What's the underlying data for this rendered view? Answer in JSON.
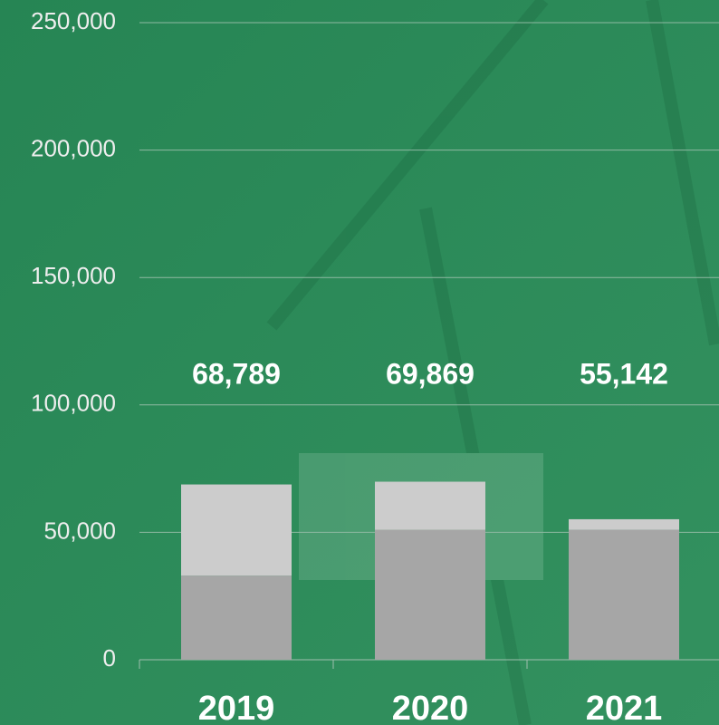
{
  "chart_data": {
    "type": "bar",
    "stacked": true,
    "categories": [
      "2019",
      "2020",
      "2021"
    ],
    "series": [
      {
        "color": "#a6a6a6",
        "values": [
          33000,
          51000,
          51000
        ]
      },
      {
        "color": "#cccccc",
        "values": [
          35789,
          18869,
          4142
        ]
      }
    ],
    "totals": [
      68789,
      69869,
      55142
    ],
    "total_labels": [
      "68,789",
      "69,869",
      "55,142"
    ],
    "ylim": [
      0,
      250000
    ],
    "yticks": [
      0,
      {
        "value": 50000,
        "label": "50,000"
      },
      {
        "value": 100000,
        "label": "100,000"
      },
      {
        "value": 150000,
        "label": "150,000"
      },
      {
        "value": 200000,
        "label": "200,000"
      },
      {
        "value": 250000,
        "label": "250,000"
      }
    ],
    "grid": true
  }
}
